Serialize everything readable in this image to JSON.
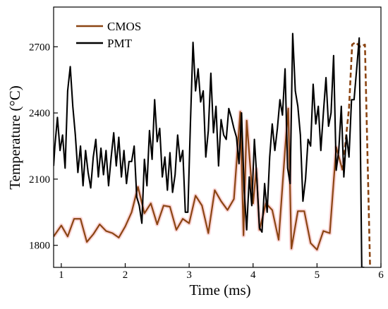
{
  "chart_data": {
    "type": "line",
    "title": "",
    "xlabel": "Time (ms)",
    "ylabel": "Temperature (°C)",
    "xlim": [
      0.88,
      6.0
    ],
    "ylim": [
      1700,
      2880
    ],
    "x_ticks": [
      1,
      2,
      3,
      4,
      5,
      6
    ],
    "y_ticks": [
      1800,
      2100,
      2400,
      2700
    ],
    "grid": false,
    "legend_position": "top-left",
    "series": [
      {
        "name": "CMOS",
        "color": "#8B4513",
        "highlight_color": "#e6392a",
        "x": [
          0.88,
          1.0,
          1.1,
          1.2,
          1.3,
          1.4,
          1.5,
          1.6,
          1.7,
          1.8,
          1.9,
          2.0,
          2.1,
          2.2,
          2.3,
          2.4,
          2.5,
          2.6,
          2.7,
          2.8,
          2.9,
          3.0,
          3.1,
          3.2,
          3.3,
          3.4,
          3.5,
          3.6,
          3.7,
          3.8,
          3.85,
          3.9,
          4.0,
          4.05,
          4.1,
          4.2,
          4.3,
          4.4,
          4.5,
          4.55,
          4.6,
          4.7,
          4.8,
          4.9,
          5.0,
          5.1,
          5.2,
          5.3,
          5.4
        ],
        "y": [
          1840,
          1890,
          1840,
          1920,
          1920,
          1815,
          1850,
          1895,
          1865,
          1855,
          1835,
          1885,
          1950,
          2065,
          1945,
          1990,
          1895,
          1980,
          1975,
          1870,
          1920,
          1900,
          2025,
          1980,
          1855,
          2050,
          2000,
          1960,
          2010,
          2405,
          1845,
          2365,
          1990,
          2145,
          1870,
          1990,
          1960,
          1825,
          2235,
          2420,
          1785,
          1955,
          1955,
          1810,
          1780,
          1865,
          1855,
          2245,
          2140
        ]
      },
      {
        "name": "",
        "color": "#8B4513",
        "dash": "dashed",
        "x": [
          5.4,
          5.5,
          5.55,
          5.6,
          5.68,
          5.75,
          5.83
        ],
        "y": [
          2140,
          2420,
          2710,
          2720,
          2700,
          2710,
          1700
        ]
      },
      {
        "name": "PMT",
        "color": "#000000",
        "x": [
          0.88,
          0.9,
          0.94,
          0.98,
          1.02,
          1.06,
          1.1,
          1.14,
          1.18,
          1.22,
          1.26,
          1.3,
          1.34,
          1.38,
          1.42,
          1.46,
          1.5,
          1.54,
          1.58,
          1.62,
          1.66,
          1.7,
          1.74,
          1.78,
          1.82,
          1.86,
          1.9,
          1.94,
          1.98,
          2.02,
          2.06,
          2.1,
          2.14,
          2.18,
          2.22,
          2.26,
          2.3,
          2.34,
          2.38,
          2.42,
          2.46,
          2.5,
          2.54,
          2.58,
          2.62,
          2.66,
          2.7,
          2.74,
          2.78,
          2.82,
          2.86,
          2.9,
          2.94,
          2.98,
          3.02,
          3.06,
          3.1,
          3.14,
          3.18,
          3.22,
          3.26,
          3.3,
          3.34,
          3.38,
          3.42,
          3.46,
          3.5,
          3.54,
          3.58,
          3.62,
          3.66,
          3.7,
          3.74,
          3.78,
          3.82,
          3.86,
          3.9,
          3.94,
          3.98,
          4.02,
          4.06,
          4.1,
          4.14,
          4.18,
          4.22,
          4.26,
          4.3,
          4.34,
          4.38,
          4.42,
          4.46,
          4.5,
          4.54,
          4.58,
          4.62,
          4.66,
          4.7,
          4.74,
          4.78,
          4.82,
          4.86,
          4.9,
          4.94,
          4.98,
          5.02,
          5.06,
          5.1,
          5.14,
          5.18,
          5.22,
          5.26,
          5.3,
          5.34,
          5.38,
          5.42,
          5.46,
          5.5,
          5.54,
          5.58,
          5.62,
          5.66,
          5.7,
          5.72,
          5.74
        ],
        "y": [
          2160,
          2250,
          2380,
          2230,
          2300,
          2150,
          2500,
          2610,
          2430,
          2300,
          2130,
          2250,
          2070,
          2230,
          2130,
          2060,
          2200,
          2280,
          2110,
          2240,
          2120,
          2230,
          2070,
          2200,
          2310,
          2160,
          2290,
          2110,
          2230,
          2080,
          2180,
          2180,
          2250,
          2020,
          1980,
          1900,
          2190,
          2070,
          2320,
          2190,
          2460,
          2270,
          2330,
          2110,
          2200,
          2050,
          2220,
          2040,
          2120,
          2300,
          2180,
          2230,
          1950,
          1950,
          2350,
          2720,
          2500,
          2600,
          2450,
          2500,
          2200,
          2320,
          2580,
          2310,
          2430,
          2160,
          2370,
          2300,
          2280,
          2420,
          2380,
          2330,
          2290,
          2170,
          2400,
          2050,
          1870,
          2110,
          1980,
          2280,
          2100,
          1880,
          1860,
          2080,
          1950,
          2200,
          2350,
          2230,
          2330,
          2460,
          2390,
          2600,
          2150,
          2080,
          2760,
          2500,
          2430,
          2300,
          2000,
          2100,
          2280,
          2250,
          2530,
          2350,
          2430,
          2230,
          2400,
          2560,
          2340,
          2400,
          2660,
          2140,
          2230,
          2430,
          2110,
          2300,
          2200,
          2460,
          2460,
          2600,
          2740,
          1700,
          1700,
          1700
        ]
      }
    ]
  }
}
